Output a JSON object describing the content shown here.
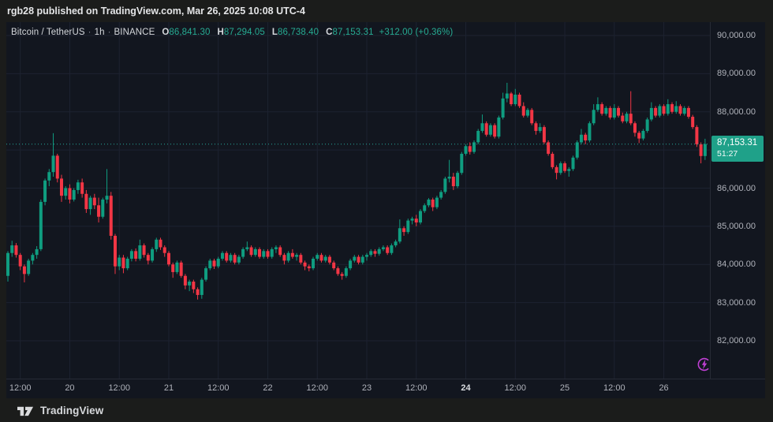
{
  "top_bar": {
    "attribution": "rgb28 published on TradingView.com, Mar 26, 2025 10:08 UTC-4"
  },
  "legend": {
    "symbol": "Bitcoin / TetherUS",
    "sep": "·",
    "interval": "1h",
    "exchange": "BINANCE",
    "ohlc": [
      {
        "k": "O",
        "v": "86,841.30"
      },
      {
        "k": "H",
        "v": "87,294.05"
      },
      {
        "k": "L",
        "v": "86,738.40"
      },
      {
        "k": "C",
        "v": "87,153.31"
      }
    ],
    "change": "+312.00 (+0.36%)"
  },
  "price_scale": {
    "ticks": [
      {
        "label": "90,000.00",
        "price": 90000
      },
      {
        "label": "89,000.00",
        "price": 89000
      },
      {
        "label": "88,000.00",
        "price": 88000
      },
      {
        "label": "86,000.00",
        "price": 86000
      },
      {
        "label": "85,000.00",
        "price": 85000
      },
      {
        "label": "84,000.00",
        "price": 84000
      },
      {
        "label": "83,000.00",
        "price": 83000
      },
      {
        "label": "82,000.00",
        "price": 82000
      }
    ],
    "grid_prices": [
      82000,
      83000,
      84000,
      85000,
      86000,
      87000,
      88000,
      89000,
      90000
    ]
  },
  "time_scale": {
    "ticks": [
      {
        "label": "12:00",
        "i": 3
      },
      {
        "label": "20",
        "i": 15
      },
      {
        "label": "12:00",
        "i": 27
      },
      {
        "label": "21",
        "i": 39
      },
      {
        "label": "12:00",
        "i": 51
      },
      {
        "label": "22",
        "i": 63
      },
      {
        "label": "12:00",
        "i": 75
      },
      {
        "label": "23",
        "i": 87
      },
      {
        "label": "12:00",
        "i": 99
      },
      {
        "label": "24",
        "i": 111,
        "bold": true
      },
      {
        "label": "12:00",
        "i": 123
      },
      {
        "label": "25",
        "i": 135
      },
      {
        "label": "12:00",
        "i": 147
      },
      {
        "label": "26",
        "i": 159
      }
    ]
  },
  "price_label": {
    "price": "87,153.31",
    "countdown": "51:27"
  },
  "footer": {
    "brand": "TradingView"
  },
  "colors": {
    "background_outer": "#1b1c1b",
    "background_chart": "#12161f",
    "grid": "#1d2230",
    "up": "#0f9d80",
    "down": "#f23645",
    "value_text": "#27ac93",
    "axis_text": "#b0b3bb",
    "price_label_bg": "#1fa189",
    "last_price_line": "#26a69a",
    "border": "#272b36",
    "boost_purple": "#bf3fd3"
  },
  "chart_data": {
    "type": "candlestick",
    "title": "Bitcoin / TetherUS, 1h, BINANCE",
    "interval": "1h",
    "x_start": "Mar 19 09:00",
    "x_end": "Mar 26 10:00",
    "ylim": [
      81700,
      90350
    ],
    "grid": true,
    "last_close": 87153.31,
    "last_candle_ohlc": [
      86841.3,
      87294.05,
      86738.4,
      87153.31
    ],
    "candles": [
      [
        83700,
        84350,
        83550,
        84300
      ],
      [
        84300,
        84620,
        84200,
        84500
      ],
      [
        84500,
        84560,
        84180,
        84250
      ],
      [
        84250,
        84300,
        83850,
        83950
      ],
      [
        83950,
        84000,
        83530,
        83750
      ],
      [
        83750,
        84150,
        83700,
        84100
      ],
      [
        84100,
        84300,
        84000,
        84250
      ],
      [
        84250,
        84480,
        84150,
        84400
      ],
      [
        84400,
        85700,
        84350,
        85640
      ],
      [
        85640,
        86250,
        85550,
        86200
      ],
      [
        86200,
        86500,
        86050,
        86420
      ],
      [
        86420,
        87440,
        86300,
        86850
      ],
      [
        86850,
        86900,
        86150,
        86250
      ],
      [
        86250,
        86350,
        85640,
        85800
      ],
      [
        85800,
        86050,
        85700,
        86000
      ],
      [
        86000,
        86100,
        85600,
        85700
      ],
      [
        85700,
        86000,
        85650,
        85950
      ],
      [
        85950,
        86220,
        85850,
        86150
      ],
      [
        86150,
        86250,
        85750,
        85850
      ],
      [
        85850,
        85950,
        85350,
        85450
      ],
      [
        85450,
        85800,
        85300,
        85750
      ],
      [
        85750,
        85850,
        85450,
        85550
      ],
      [
        85550,
        85750,
        85100,
        85250
      ],
      [
        85250,
        85750,
        85200,
        85700
      ],
      [
        85700,
        86500,
        85600,
        85800
      ],
      [
        85800,
        85900,
        84650,
        84750
      ],
      [
        84750,
        84800,
        83750,
        83950
      ],
      [
        83950,
        84250,
        83850,
        84180
      ],
      [
        84180,
        84250,
        83770,
        83900
      ],
      [
        83900,
        84200,
        83850,
        84150
      ],
      [
        84150,
        84400,
        84080,
        84350
      ],
      [
        84350,
        84420,
        84080,
        84150
      ],
      [
        84150,
        84650,
        84100,
        84500
      ],
      [
        84500,
        84550,
        84180,
        84250
      ],
      [
        84250,
        84300,
        84000,
        84100
      ],
      [
        84100,
        84450,
        84050,
        84400
      ],
      [
        84400,
        84700,
        84330,
        84650
      ],
      [
        84650,
        84700,
        84380,
        84450
      ],
      [
        84450,
        84500,
        84200,
        84300
      ],
      [
        84300,
        84350,
        83950,
        84000
      ],
      [
        84000,
        84050,
        83650,
        83800
      ],
      [
        83800,
        84100,
        83750,
        84050
      ],
      [
        84050,
        84100,
        83650,
        83700
      ],
      [
        83700,
        83750,
        83350,
        83450
      ],
      [
        83450,
        83600,
        83300,
        83550
      ],
      [
        83550,
        83600,
        83250,
        83350
      ],
      [
        83350,
        83400,
        83080,
        83200
      ],
      [
        83200,
        83650,
        83100,
        83600
      ],
      [
        83600,
        83950,
        83550,
        83900
      ],
      [
        83900,
        84150,
        83850,
        84100
      ],
      [
        84100,
        84150,
        83880,
        83950
      ],
      [
        83950,
        84200,
        83900,
        84150
      ],
      [
        84150,
        84350,
        84100,
        84300
      ],
      [
        84300,
        84350,
        84050,
        84100
      ],
      [
        84100,
        84300,
        84050,
        84250
      ],
      [
        84250,
        84300,
        84000,
        84050
      ],
      [
        84050,
        84250,
        84000,
        84200
      ],
      [
        84200,
        84450,
        84150,
        84400
      ],
      [
        84400,
        84600,
        84350,
        84450
      ],
      [
        84450,
        84500,
        84200,
        84250
      ],
      [
        84250,
        84450,
        84200,
        84400
      ],
      [
        84400,
        84450,
        84150,
        84200
      ],
      [
        84200,
        84400,
        84150,
        84350
      ],
      [
        84350,
        84400,
        84150,
        84200
      ],
      [
        84200,
        84450,
        84150,
        84400
      ],
      [
        84400,
        84500,
        84300,
        84450
      ],
      [
        84450,
        84500,
        84200,
        84250
      ],
      [
        84250,
        84300,
        84000,
        84100
      ],
      [
        84100,
        84350,
        84050,
        84300
      ],
      [
        84300,
        84400,
        84150,
        84200
      ],
      [
        84200,
        84300,
        84100,
        84250
      ],
      [
        84250,
        84300,
        84000,
        84050
      ],
      [
        84050,
        84100,
        83850,
        83950
      ],
      [
        83950,
        84000,
        83820,
        83900
      ],
      [
        83900,
        84200,
        83850,
        84150
      ],
      [
        84150,
        84300,
        84100,
        84250
      ],
      [
        84250,
        84300,
        84050,
        84100
      ],
      [
        84100,
        84250,
        84050,
        84200
      ],
      [
        84200,
        84250,
        84000,
        84050
      ],
      [
        84050,
        84100,
        83850,
        83900
      ],
      [
        83900,
        83950,
        83700,
        83750
      ],
      [
        83750,
        83800,
        83600,
        83700
      ],
      [
        83700,
        83950,
        83650,
        83900
      ],
      [
        83900,
        84150,
        83850,
        84100
      ],
      [
        84100,
        84250,
        84050,
        84200
      ],
      [
        84200,
        84250,
        84000,
        84050
      ],
      [
        84050,
        84250,
        84000,
        84200
      ],
      [
        84200,
        84300,
        84100,
        84250
      ],
      [
        84250,
        84400,
        84200,
        84350
      ],
      [
        84350,
        84400,
        84200,
        84280
      ],
      [
        84280,
        84450,
        84230,
        84400
      ],
      [
        84400,
        84500,
        84350,
        84450
      ],
      [
        84450,
        84500,
        84250,
        84300
      ],
      [
        84300,
        84550,
        84250,
        84500
      ],
      [
        84500,
        84650,
        84450,
        84600
      ],
      [
        84600,
        85180,
        84550,
        84950
      ],
      [
        84950,
        85000,
        84750,
        84850
      ],
      [
        84850,
        85200,
        84800,
        85150
      ],
      [
        85150,
        85250,
        85050,
        85200
      ],
      [
        85200,
        85300,
        85000,
        85100
      ],
      [
        85100,
        85450,
        85050,
        85400
      ],
      [
        85400,
        85600,
        85350,
        85550
      ],
      [
        85550,
        85740,
        85500,
        85700
      ],
      [
        85700,
        85750,
        85400,
        85500
      ],
      [
        85500,
        85800,
        85450,
        85750
      ],
      [
        85750,
        85950,
        85700,
        85900
      ],
      [
        85900,
        86300,
        85850,
        86250
      ],
      [
        86250,
        86740,
        86150,
        86300
      ],
      [
        86300,
        86400,
        85950,
        86050
      ],
      [
        86050,
        86450,
        86000,
        86400
      ],
      [
        86400,
        86950,
        86350,
        86900
      ],
      [
        86900,
        87150,
        86850,
        87100
      ],
      [
        87100,
        87200,
        86880,
        86950
      ],
      [
        86950,
        87250,
        86900,
        87200
      ],
      [
        87200,
        87550,
        87150,
        87500
      ],
      [
        87500,
        87930,
        87450,
        87700
      ],
      [
        87700,
        87750,
        87350,
        87400
      ],
      [
        87400,
        87700,
        87350,
        87650
      ],
      [
        87650,
        87700,
        87300,
        87350
      ],
      [
        87350,
        87900,
        87300,
        87850
      ],
      [
        87850,
        88500,
        87800,
        88350
      ],
      [
        88350,
        88760,
        88250,
        88480
      ],
      [
        88480,
        88520,
        88150,
        88200
      ],
      [
        88200,
        88600,
        88150,
        88450
      ],
      [
        88450,
        88500,
        88100,
        88150
      ],
      [
        88150,
        88250,
        87850,
        87900
      ],
      [
        87900,
        88100,
        87850,
        88050
      ],
      [
        88050,
        88100,
        87650,
        87700
      ],
      [
        87700,
        87750,
        87400,
        87500
      ],
      [
        87500,
        87700,
        87450,
        87600
      ],
      [
        87600,
        87650,
        87150,
        87200
      ],
      [
        87200,
        87250,
        86850,
        86900
      ],
      [
        86900,
        86950,
        86500,
        86550
      ],
      [
        86550,
        86600,
        86230,
        86400
      ],
      [
        86400,
        86700,
        86350,
        86650
      ],
      [
        86650,
        86700,
        86400,
        86450
      ],
      [
        86450,
        86550,
        86300,
        86500
      ],
      [
        86500,
        86850,
        86450,
        86800
      ],
      [
        86800,
        87250,
        86750,
        87200
      ],
      [
        87200,
        87550,
        87150,
        87400
      ],
      [
        87400,
        87450,
        87150,
        87250
      ],
      [
        87250,
        87750,
        87200,
        87700
      ],
      [
        87700,
        88200,
        87650,
        88050
      ],
      [
        88050,
        88380,
        88000,
        88200
      ],
      [
        88200,
        88250,
        87900,
        87950
      ],
      [
        87950,
        88150,
        87900,
        88100
      ],
      [
        88100,
        88150,
        87800,
        87850
      ],
      [
        87850,
        88200,
        87800,
        88100
      ],
      [
        88100,
        88150,
        87850,
        87900
      ],
      [
        87900,
        87980,
        87700,
        87750
      ],
      [
        87750,
        88000,
        87700,
        87950
      ],
      [
        87950,
        88540,
        87650,
        87700
      ],
      [
        87700,
        87750,
        87350,
        87450
      ],
      [
        87450,
        87500,
        87180,
        87300
      ],
      [
        87300,
        87550,
        87250,
        87500
      ],
      [
        87500,
        87850,
        87450,
        87800
      ],
      [
        87800,
        88250,
        87750,
        88100
      ],
      [
        88100,
        88150,
        87850,
        87900
      ],
      [
        87900,
        88200,
        87850,
        88150
      ],
      [
        88150,
        88200,
        87900,
        87950
      ],
      [
        87950,
        88330,
        87900,
        88200
      ],
      [
        88200,
        88250,
        87950,
        88000
      ],
      [
        88000,
        88280,
        87950,
        88150
      ],
      [
        88150,
        88200,
        87900,
        87950
      ],
      [
        87950,
        88150,
        87900,
        88100
      ],
      [
        88100,
        88150,
        87820,
        87870
      ],
      [
        87870,
        87920,
        87550,
        87600
      ],
      [
        87600,
        87650,
        87080,
        87150
      ],
      [
        87150,
        87200,
        86650,
        86841.3
      ],
      [
        86841.3,
        87294.05,
        86738.4,
        87153.31
      ]
    ]
  }
}
